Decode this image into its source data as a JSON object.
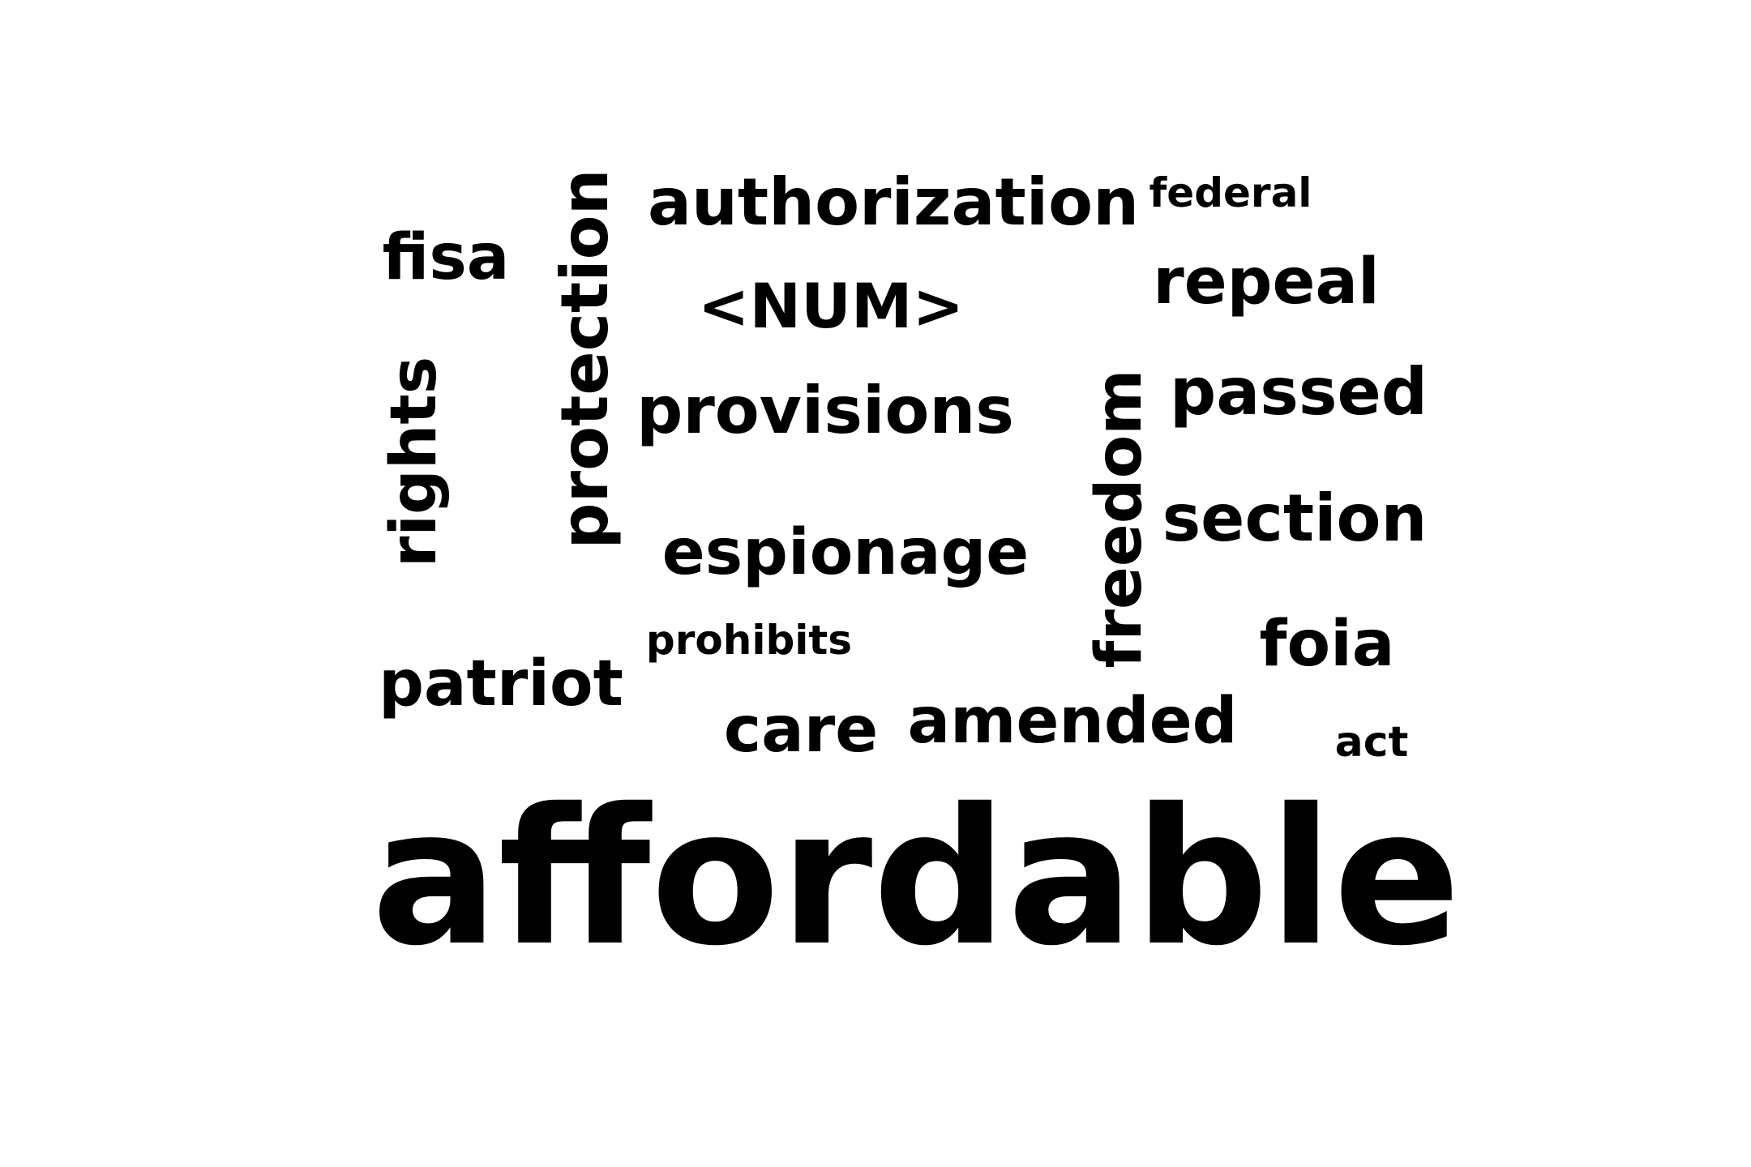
{
  "words": {
    "authorization": "authorization",
    "federal": "federal",
    "fisa": "fisa",
    "protection": "protection",
    "num": "<NUM>",
    "repeal": "repeal",
    "rights": "rights",
    "provisions": "provisions",
    "freedom": "freedom",
    "passed": "passed",
    "section": "section",
    "espionage": "espionage",
    "prohibits": "prohibits",
    "foia": "foia",
    "patriot": "patriot",
    "care": "care",
    "amended": "amended",
    "act": "act",
    "affordable": "affordable"
  },
  "colors": {
    "text": "#000000",
    "background": "#ffffff"
  }
}
